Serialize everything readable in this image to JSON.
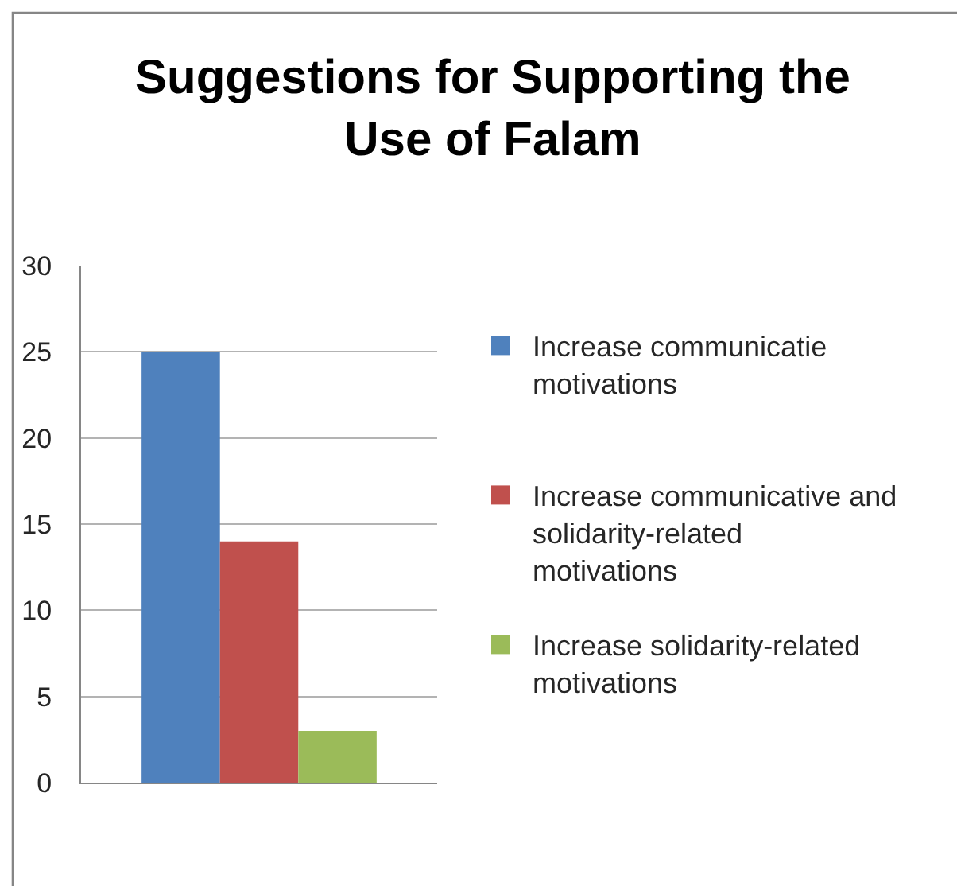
{
  "chart_data": {
    "type": "bar",
    "title": "Suggestions for Supporting the Use of Falam",
    "categories": [
      null
    ],
    "series": [
      {
        "name": "Increase communicatie motivations",
        "color": "#4f81bd",
        "values": [
          25
        ]
      },
      {
        "name": "Increase communicative and solidarity-related motivations",
        "color": "#c0504d",
        "values": [
          14
        ]
      },
      {
        "name": "Increase solidarity-related motivations",
        "color": "#9bbb59",
        "values": [
          3
        ]
      }
    ],
    "ylim": [
      0,
      30
    ],
    "yticks": [
      0,
      5,
      10,
      15,
      20,
      25,
      30
    ],
    "grid": "y",
    "legend": "right"
  }
}
